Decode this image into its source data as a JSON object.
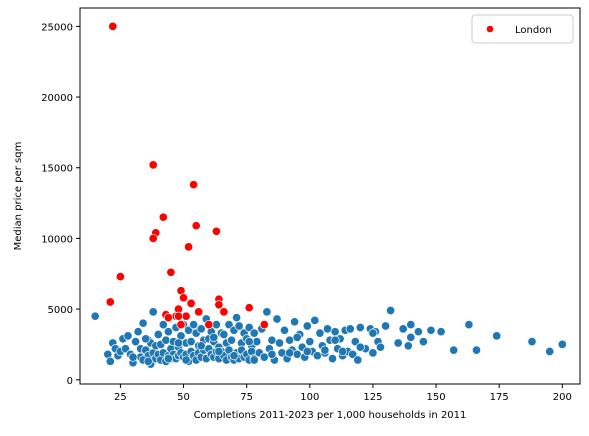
{
  "chart_data": {
    "type": "scatter",
    "xlabel": "Completions 2011-2023 per 1,000 households in 2011",
    "ylabel": "Median price per sqm",
    "xlim": [
      9,
      207
    ],
    "ylim": [
      -300,
      26300
    ],
    "xticks": [
      "25",
      "50",
      "75",
      "100",
      "125",
      "150",
      "175",
      "200"
    ],
    "yticks": [
      "0",
      "5000",
      "10000",
      "15000",
      "20000",
      "25000"
    ],
    "legend": {
      "position": "top-right",
      "entries": [
        "London"
      ]
    },
    "colors": {
      "other": "#1f77b4",
      "london": "#ff0000"
    },
    "series": [
      {
        "name": "London",
        "x": [
          22,
          25,
          21,
          38,
          39,
          38,
          42,
          45,
          47,
          48,
          49,
          50,
          51,
          52,
          53,
          55,
          54,
          56,
          60,
          64,
          63,
          64,
          66,
          76,
          82,
          43,
          44,
          48,
          49
        ],
        "y": [
          25000,
          7300,
          5500,
          15200,
          10400,
          10000,
          11500,
          7600,
          4500,
          5000,
          6300,
          5800,
          4500,
          9400,
          5400,
          10900,
          13800,
          4800,
          3900,
          5700,
          10500,
          5300,
          4800,
          5100,
          3900,
          4600,
          4400,
          4500,
          3900
        ]
      },
      {
        "name": "",
        "x": [
          15,
          20,
          21,
          22,
          23,
          24,
          25,
          26,
          27,
          28,
          29,
          30,
          31,
          32,
          33,
          33,
          34,
          35,
          35,
          36,
          36,
          37,
          37,
          38,
          38,
          39,
          39,
          40,
          40,
          41,
          41,
          42,
          42,
          43,
          43,
          44,
          44,
          45,
          45,
          46,
          46,
          47,
          47,
          48,
          48,
          49,
          49,
          50,
          50,
          51,
          51,
          52,
          52,
          53,
          53,
          54,
          54,
          55,
          55,
          56,
          56,
          57,
          57,
          58,
          58,
          59,
          59,
          60,
          60,
          61,
          61,
          62,
          62,
          63,
          63,
          64,
          64,
          65,
          65,
          66,
          66,
          67,
          67,
          68,
          68,
          69,
          69,
          70,
          70,
          71,
          71,
          72,
          72,
          73,
          73,
          74,
          74,
          75,
          75,
          76,
          76,
          77,
          77,
          78,
          78,
          79,
          80,
          81,
          82,
          83,
          84,
          85,
          86,
          87,
          88,
          89,
          90,
          91,
          92,
          93,
          94,
          95,
          96,
          97,
          98,
          99,
          100,
          101,
          102,
          103,
          104,
          105,
          106,
          107,
          108,
          109,
          110,
          111,
          112,
          113,
          114,
          115,
          116,
          117,
          118,
          119,
          120,
          122,
          124,
          125,
          126,
          127,
          128,
          130,
          132,
          135,
          137,
          139,
          140,
          143,
          145,
          148,
          152,
          157,
          163,
          166,
          174,
          188,
          195,
          200,
          30,
          34,
          36,
          44,
          51,
          57,
          64,
          70,
          78,
          85,
          92,
          99,
          106,
          113,
          120,
          35,
          48,
          62,
          76,
          95,
          110,
          125,
          140
        ],
        "y": [
          4500,
          1800,
          1300,
          2600,
          2200,
          1700,
          2000,
          2900,
          2200,
          3100,
          1800,
          1200,
          2700,
          3400,
          1600,
          2200,
          4000,
          1500,
          2100,
          2800,
          1700,
          2600,
          1100,
          4800,
          1900,
          2400,
          1500,
          3200,
          1800,
          2500,
          1400,
          3900,
          1900,
          2800,
          1300,
          3400,
          1700,
          2200,
          1500,
          2700,
          1800,
          3700,
          1500,
          2300,
          1700,
          3100,
          1900,
          3900,
          1600,
          2600,
          1800,
          3500,
          1300,
          2700,
          2000,
          3900,
          1700,
          3300,
          1400,
          2400,
          1900,
          3600,
          1600,
          2800,
          2100,
          4300,
          1500,
          2900,
          2200,
          3400,
          1800,
          2700,
          1600,
          3900,
          2000,
          2300,
          1500,
          3300,
          2000,
          3200,
          1700,
          2600,
          1400,
          3900,
          2100,
          2800,
          1600,
          3500,
          1400,
          4400,
          1900,
          3800,
          1500,
          2600,
          2100,
          3300,
          1600,
          2900,
          1800,
          3700,
          1400,
          2400,
          2000,
          3300,
          1500,
          2700,
          1900,
          3600,
          1600,
          4800,
          2200,
          2800,
          1400,
          4300,
          2600,
          1900,
          3500,
          1500,
          2800,
          2100,
          4100,
          1800,
          3200,
          2300,
          1600,
          3800,
          2700,
          2000,
          4200,
          1700,
          3300,
          2400,
          1900,
          3600,
          2800,
          1500,
          3400,
          2200,
          2900,
          1700,
          3500,
          2000,
          3600,
          1800,
          2700,
          1400,
          3700,
          2200,
          3600,
          1900,
          3400,
          2700,
          2300,
          3800,
          4900,
          2600,
          3600,
          2400,
          3900,
          3400,
          2700,
          3500,
          3400,
          2100,
          3900,
          2100,
          3100,
          2700,
          2000,
          2500,
          1600,
          1400,
          1300,
          1500,
          1400,
          2400,
          2000,
          1700,
          1400,
          1800,
          1900,
          2000,
          2100,
          2000,
          2300,
          2900,
          2600,
          3000,
          2700,
          3000,
          2800,
          3300,
          3000
        ]
      }
    ]
  }
}
